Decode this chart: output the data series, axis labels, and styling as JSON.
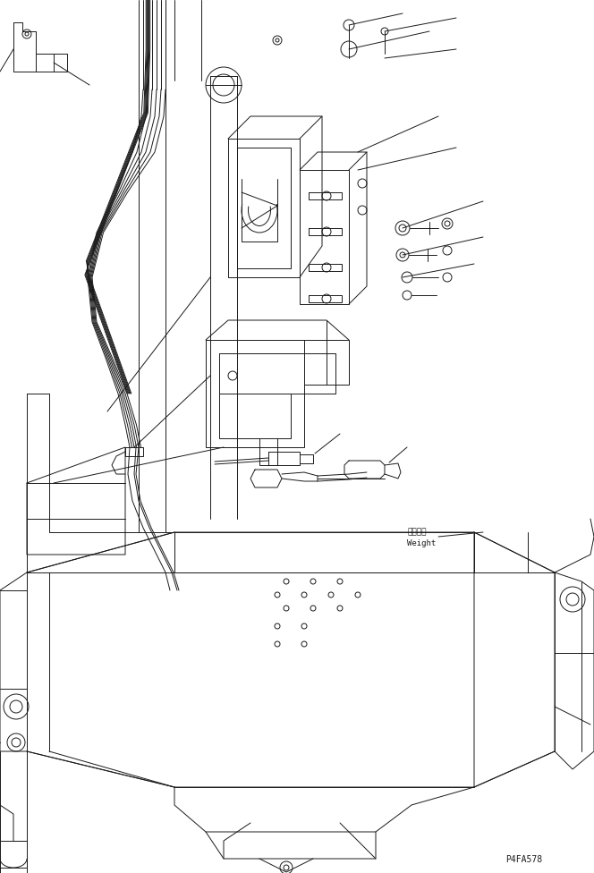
{
  "background_color": "#ffffff",
  "line_color": "#1a1a1a",
  "lw": 0.7,
  "figsize": [
    6.64,
    9.76
  ],
  "dpi": 100,
  "watermark": "P4FA578",
  "weight_jp": "ウェイト",
  "weight_en": "Weight"
}
